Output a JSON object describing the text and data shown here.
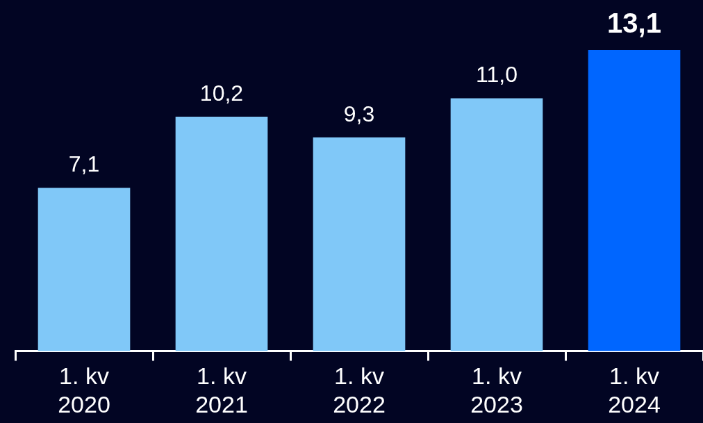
{
  "chart_data": {
    "type": "bar",
    "categories": [
      "1. kv\n2020",
      "1. kv\n2021",
      "1. kv\n2022",
      "1. kv\n2023",
      "1. kv\n2024"
    ],
    "values": [
      7.1,
      10.2,
      9.3,
      11.0,
      13.1
    ],
    "colors": [
      "#80c8f8",
      "#80c8f8",
      "#80c8f8",
      "#80c8f8",
      "#0066ff"
    ],
    "value_labels": [
      "7,1",
      "10,2",
      "9,3",
      "11,0",
      "13,1"
    ],
    "grid": false,
    "legend": false
  }
}
